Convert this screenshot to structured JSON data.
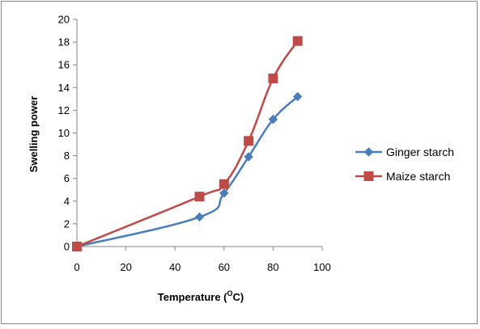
{
  "chart_data": {
    "type": "line",
    "title": "",
    "xlabel": "Temperature (",
    "xlabel_sup": "O",
    "xlabel_unit": "C)",
    "ylabel": "Swelling power",
    "xlim": [
      0,
      100
    ],
    "ylim": [
      0,
      20
    ],
    "xticks": [
      0,
      20,
      40,
      60,
      80,
      100
    ],
    "yticks": [
      0,
      2,
      4,
      6,
      8,
      10,
      12,
      14,
      16,
      18,
      20
    ],
    "grid": false,
    "legend_position": "right",
    "series": [
      {
        "name": "Ginger starch",
        "color": "#4a7ebb",
        "marker": "diamond",
        "x": [
          0,
          50,
          60,
          70,
          80,
          90
        ],
        "y": [
          0,
          2.6,
          4.7,
          7.9,
          11.2,
          13.2
        ]
      },
      {
        "name": "Maize starch",
        "color": "#be4b48",
        "marker": "square",
        "x": [
          0,
          50,
          60,
          70,
          80,
          90
        ],
        "y": [
          0,
          4.4,
          5.5,
          9.3,
          14.8,
          18.1
        ]
      }
    ]
  }
}
